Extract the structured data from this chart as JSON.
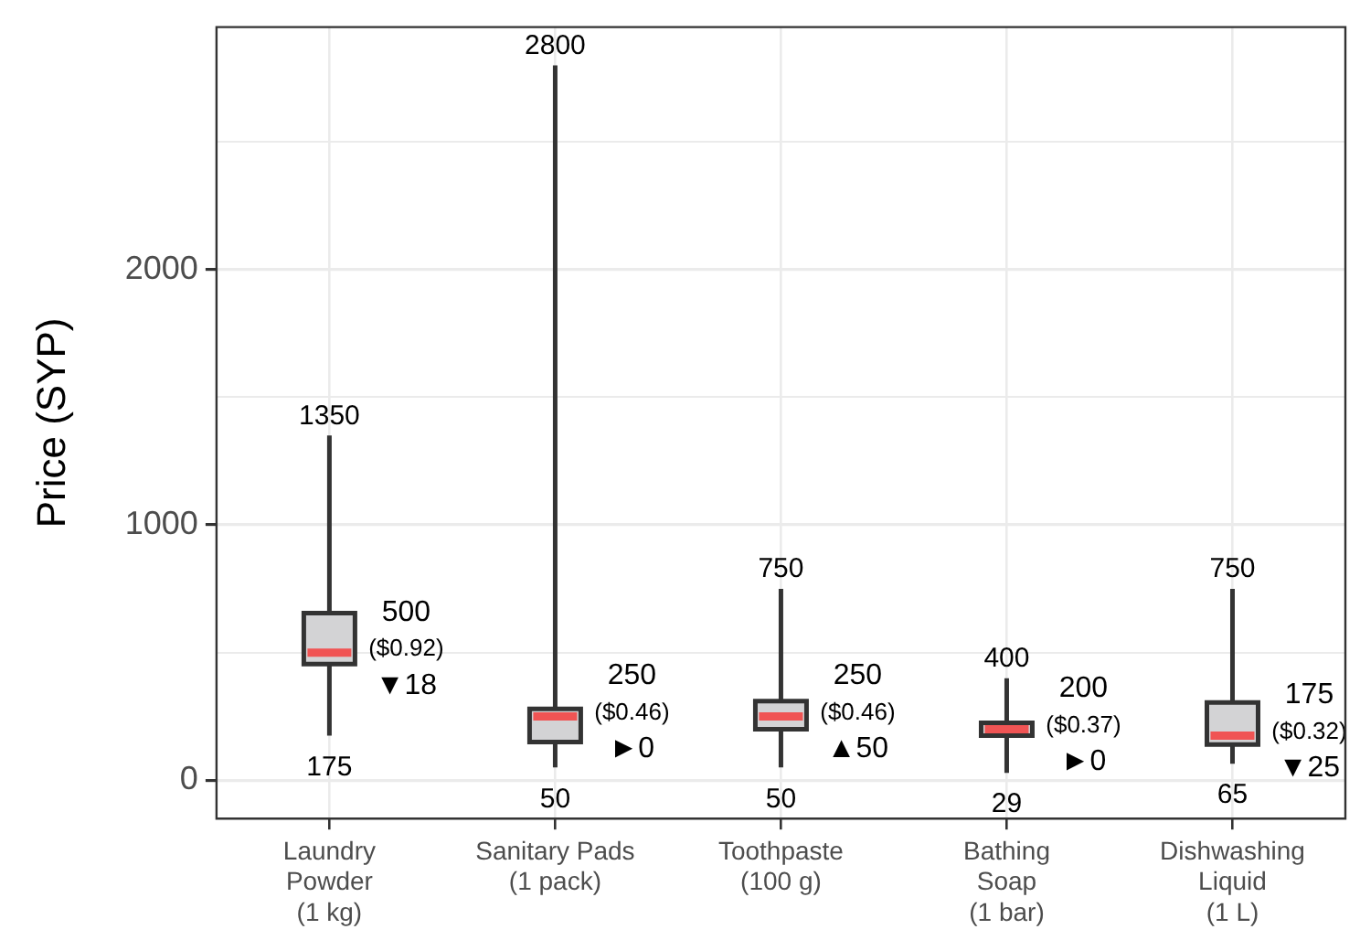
{
  "chart_data": {
    "type": "box",
    "ylabel": "Price (SYP)",
    "categories": [
      "Laundry\nPowder\n(1 kg)",
      "Sanitary Pads\n(1 pack)",
      "Toothpaste\n(100 g)",
      "Bathing\nSoap\n(1 bar)",
      "Dishwashing\nLiquid\n(1 L)"
    ],
    "series": [
      {
        "color": "#d3d3d5",
        "boxes": [
          {
            "low": 175,
            "q1": 455,
            "median": 500,
            "q3": 655,
            "high": 1350
          },
          {
            "low": 50,
            "q1": 150,
            "median": 250,
            "q3": 280,
            "high": 2800
          },
          {
            "low": 50,
            "q1": 200,
            "median": 250,
            "q3": 310,
            "high": 750
          },
          {
            "low": 29,
            "q1": 175,
            "median": 200,
            "q3": 225,
            "high": 400
          },
          {
            "low": 65,
            "q1": 140,
            "median": 175,
            "q3": 305,
            "high": 750
          }
        ]
      }
    ],
    "ylim": [
      -150,
      2950
    ],
    "yticks": [
      0,
      {
        "value": 500,
        "label": null
      },
      1000,
      {
        "value": 1500,
        "label": null
      },
      2000,
      {
        "value": 2500,
        "label": null
      }
    ],
    "grid": true,
    "legend": false,
    "annotations": [
      {
        "text": "1350",
        "x": "Laundry\nPowder\n(1 kg)",
        "y": 1350
      },
      {
        "text": "175",
        "x": "Laundry\nPowder\n(1 kg)",
        "y": 175
      },
      {
        "text": "500\n($0.92)",
        "x": "Laundry\nPowder\n(1 kg)",
        "y": 500
      },
      {
        "text": "▼18",
        "x": "Laundry\nPowder\n(1 kg)",
        "y": 500
      },
      {
        "text": "2800",
        "x": "Sanitary Pads\n(1 pack)",
        "y": 2800
      },
      {
        "text": "50",
        "x": "Sanitary Pads\n(1 pack)",
        "y": 50
      },
      {
        "text": "250\n($0.46)",
        "x": "Sanitary Pads\n(1 pack)",
        "y": 250
      },
      {
        "text": "►0",
        "x": "Sanitary Pads\n(1 pack)",
        "y": 250
      },
      {
        "text": "750",
        "x": "Toothpaste\n(100 g)",
        "y": 750
      },
      {
        "text": "50",
        "x": "Toothpaste\n(100 g)",
        "y": 50
      },
      {
        "text": "250\n($0.46)",
        "x": "Toothpaste\n(100 g)",
        "y": 250
      },
      {
        "text": "▲50",
        "x": "Toothpaste\n(100 g)",
        "y": 250
      },
      {
        "text": "400",
        "x": "Bathing\nSoap\n(1 bar)",
        "y": 400
      },
      {
        "text": "29",
        "x": "Bathing\nSoap\n(1 bar)",
        "y": 29
      },
      {
        "text": "200\n($0.37)",
        "x": "Bathing\nSoap\n(1 bar)",
        "y": 200
      },
      {
        "text": "►0",
        "x": "Bathing\nSoap\n(1 bar)",
        "y": 200
      },
      {
        "text": "750",
        "x": "Dishwashing\nLiquid\n(1 L)",
        "y": 750
      },
      {
        "text": "65",
        "x": "Dishwashing\nLiquid\n(1 L)",
        "y": 65
      },
      {
        "text": "175\n($0.32)",
        "x": "Dishwashing\nLiquid\n(1 L)",
        "y": 175
      },
      {
        "text": "▼25",
        "x": "Dishwashing\nLiquid\n(1 L)",
        "y": 175
      }
    ]
  }
}
